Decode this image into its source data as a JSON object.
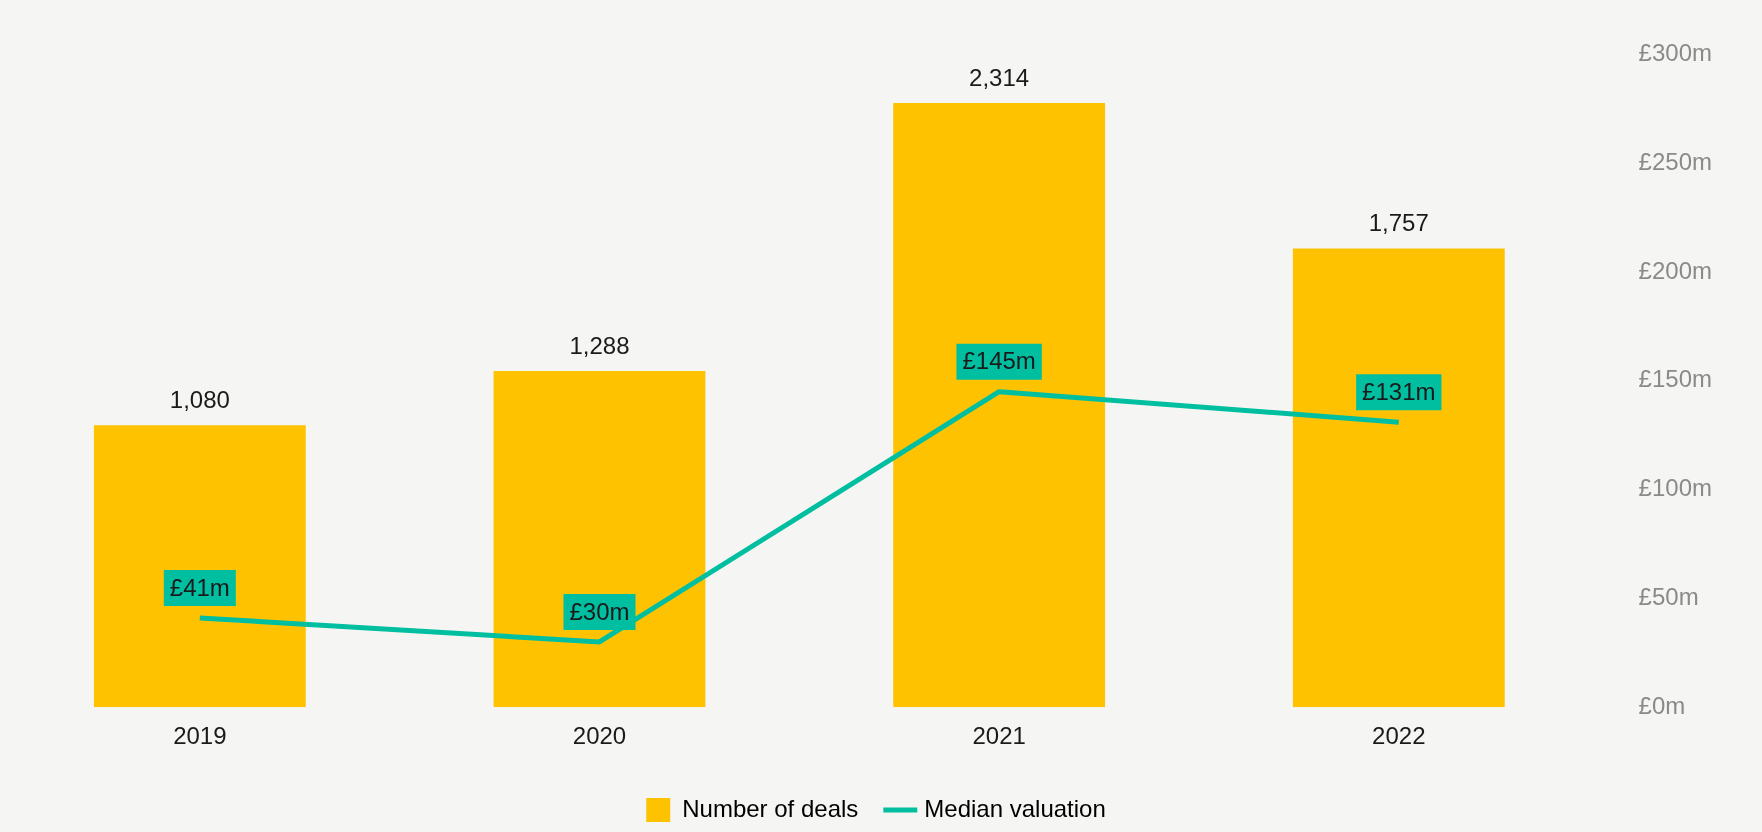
{
  "chart_data": {
    "type": "bar",
    "categories": [
      "2019",
      "2020",
      "2021",
      "2022"
    ],
    "series": [
      {
        "name": "Number of deals",
        "color": "#ffc200",
        "values": [
          1080,
          1288,
          2314,
          1757
        ],
        "value_labels": [
          "1,080",
          "1,288",
          "2,314",
          "1,757"
        ]
      },
      {
        "name": "Median valuation",
        "type": "line",
        "axis": "y2",
        "color": "#00bfa0",
        "values": [
          41,
          30,
          145,
          131
        ],
        "value_labels": [
          "£41m",
          "£30m",
          "£145m",
          "£131m"
        ]
      }
    ],
    "y2lim": [
      0,
      300
    ],
    "y2ticks": [
      {
        "value": 0,
        "label": "£0m"
      },
      {
        "value": 50,
        "label": "£50m"
      },
      {
        "value": 100,
        "label": "£100m"
      },
      {
        "value": 150,
        "label": "£150m"
      },
      {
        "value": 200,
        "label": "£200m"
      },
      {
        "value": 250,
        "label": "£250m"
      },
      {
        "value": 300,
        "label": "£300m"
      }
    ],
    "grid": false,
    "legend": "bottom",
    "marker": "none"
  }
}
